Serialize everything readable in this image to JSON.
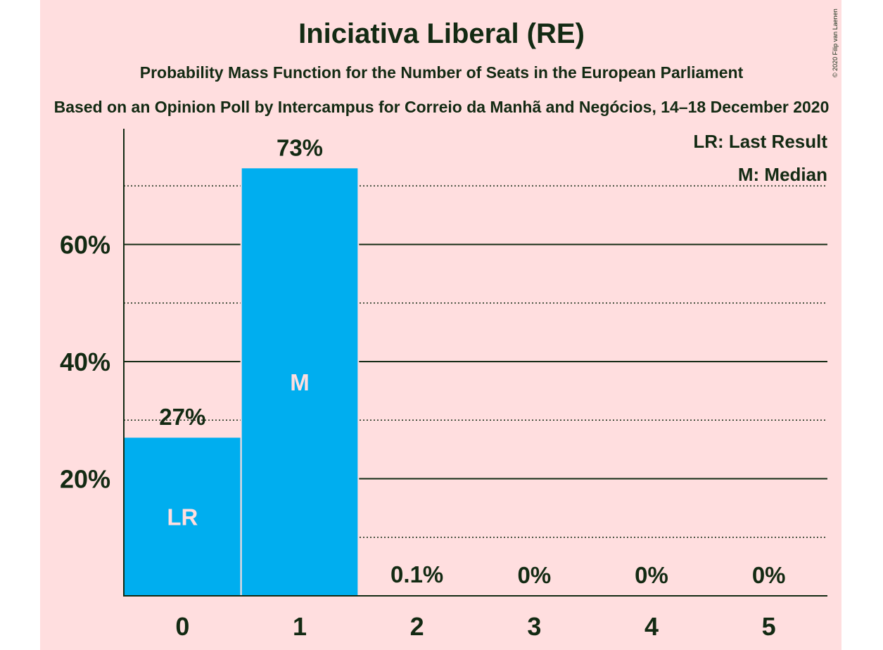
{
  "title": "Iniciativa Liberal (RE)",
  "subtitle": "Probability Mass Function for the Number of Seats in the European Parliament",
  "source": "Based on an Opinion Poll by Intercampus for Correio da Manhã and Negócios, 14–18 December 2020",
  "copyright": "© 2020 Filip van Laenen",
  "legend": [
    "LR: Last Result",
    "M: Median"
  ],
  "colors": {
    "background": "#ffdedf",
    "bar": "#00aeef",
    "text": "#132a13",
    "bar_label": "#ffdedf"
  },
  "chart_data": {
    "type": "bar",
    "categories": [
      "0",
      "1",
      "2",
      "3",
      "4",
      "5"
    ],
    "values": [
      0.27,
      0.73,
      0.001,
      0,
      0,
      0
    ],
    "value_labels": [
      "27%",
      "73%",
      "0.1%",
      "0%",
      "0%",
      "0%"
    ],
    "bar_markers": [
      "LR",
      "M",
      "",
      "",
      "",
      ""
    ],
    "ylim": [
      0,
      0.8
    ],
    "y_ticks": [
      0.2,
      0.4,
      0.6
    ],
    "y_tick_labels": [
      "20%",
      "40%",
      "60%"
    ],
    "minor_gridlines": [
      0.1,
      0.3,
      0.5,
      0.7
    ],
    "xlabel": "",
    "ylabel": "",
    "legend_position": "top-right"
  }
}
